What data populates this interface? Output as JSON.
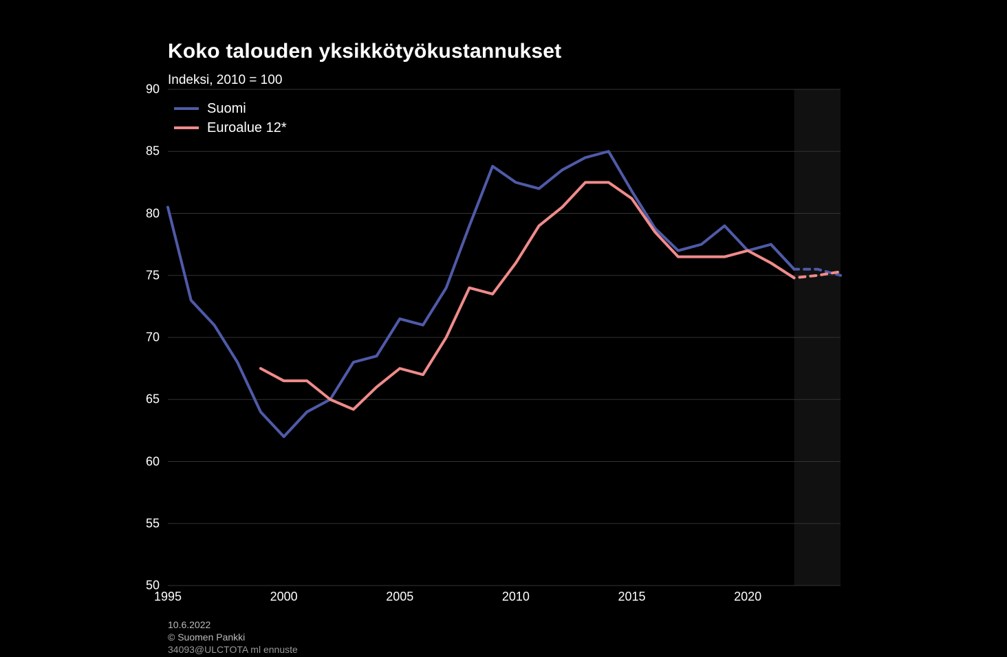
{
  "title": "Koko talouden yksikkötyökustannukset",
  "ylabel": "Indeksi, 2010 = 100",
  "legend": {
    "items": [
      {
        "label": "Suomi",
        "color": "#4f5aa8"
      },
      {
        "label": "Euroalue 12*",
        "color": "#f08b8b"
      }
    ]
  },
  "footer": {
    "date": "10.6.2022",
    "copyright": "© Suomen Pankki",
    "code": "34093@ULCTOTA ml ennuste"
  },
  "chart": {
    "type": "line",
    "background_color": "#000000",
    "grid_color": "#333333",
    "text_color": "#ffffff",
    "ylim": [
      50,
      90
    ],
    "yticks": [
      50,
      55,
      60,
      65,
      70,
      75,
      80,
      85,
      90
    ],
    "xyears": [
      1995,
      1996,
      1997,
      1998,
      1999,
      2000,
      2001,
      2002,
      2003,
      2004,
      2005,
      2006,
      2007,
      2008,
      2009,
      2010,
      2011,
      2012,
      2013,
      2014,
      2015,
      2016,
      2017,
      2018,
      2019,
      2020,
      2021,
      2022,
      2023,
      2024
    ],
    "xtick_years": [
      1995,
      2000,
      2005,
      2010,
      2015,
      2020
    ],
    "forecast_start_year": 2022,
    "series": [
      {
        "name": "Suomi",
        "color": "#4f5aa8",
        "dash_from_year": 2022,
        "values": [
          80.5,
          73.0,
          71.0,
          68.0,
          64.0,
          62.0,
          64.0,
          65.0,
          68.0,
          68.5,
          71.5,
          71.0,
          74.0,
          79.0,
          83.8,
          82.5,
          82.0,
          83.5,
          84.5,
          85.0,
          81.8,
          78.8,
          77.0,
          77.5,
          79.0,
          77.0,
          77.5,
          75.5,
          75.5,
          75.0
        ]
      },
      {
        "name": "Euroalue 12*",
        "color": "#f08b8b",
        "dash_from_year": 2022,
        "values": [
          null,
          null,
          null,
          null,
          67.5,
          66.5,
          66.5,
          65.0,
          64.2,
          66.0,
          67.5,
          67.0,
          70.0,
          74.0,
          73.5,
          76.0,
          79.0,
          80.5,
          82.5,
          82.5,
          81.2,
          78.5,
          76.5,
          76.5,
          76.5,
          77.0,
          76.0,
          74.8,
          75.0,
          75.3
        ]
      }
    ],
    "title_fontsize": 30,
    "label_fontsize": 19,
    "tick_fontsize": 18,
    "line_width": 4
  }
}
